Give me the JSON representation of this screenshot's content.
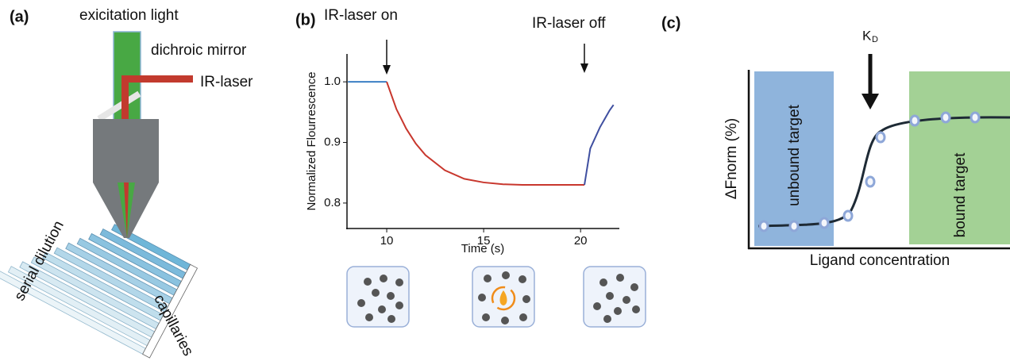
{
  "panel_a": {
    "label": "(a)",
    "excitation": "exicitation light",
    "mirror": "dichroic mirror",
    "laser": "IR-laser",
    "dilution": "serial dilution",
    "capillaries": "capillaries"
  },
  "chart_data": {
    "type": "line",
    "panel_label": "(b)",
    "x_label": "Time (s)",
    "y_label": "Normalized Flourrescence",
    "annotations": [
      "IR-laser on",
      "IR-laser off"
    ],
    "x": [
      8,
      10,
      10.5,
      11,
      11.5,
      12,
      13,
      14,
      15,
      16,
      17,
      18,
      19,
      20.2,
      20.5,
      21,
      21.5,
      21.7
    ],
    "series": [
      {
        "color": "#3b7fc4",
        "values": [
          1.0,
          1.0,
          null,
          null,
          null,
          null,
          null,
          null,
          null,
          null,
          null,
          null,
          null,
          null,
          null,
          null,
          null,
          null
        ]
      },
      {
        "color": "#c8372d",
        "values": [
          null,
          1.0,
          0.955,
          0.923,
          0.898,
          0.879,
          0.854,
          0.84,
          0.834,
          0.831,
          0.83,
          0.83,
          0.83,
          0.83,
          null,
          null,
          null,
          null
        ]
      },
      {
        "color": "#3f4fa0",
        "values": [
          null,
          null,
          null,
          null,
          null,
          null,
          null,
          null,
          null,
          null,
          null,
          null,
          null,
          0.83,
          0.89,
          0.925,
          0.953,
          0.962
        ]
      }
    ],
    "xlim": [
      7.95,
      22
    ],
    "ylim": [
      0.758,
      1.046
    ],
    "xticks": [
      10,
      15,
      20
    ],
    "yticks": [
      0.8,
      0.9,
      {
        "value": 1.0,
        "label": "1.0"
      }
    ]
  },
  "panel_c": {
    "label": "(c)",
    "unbound": "unbound target",
    "bound": "bound target",
    "y_label": "ΔFnorm (%)",
    "x_label": "Ligand concentration",
    "kd": {
      "main": "K",
      "sub": "D"
    }
  }
}
